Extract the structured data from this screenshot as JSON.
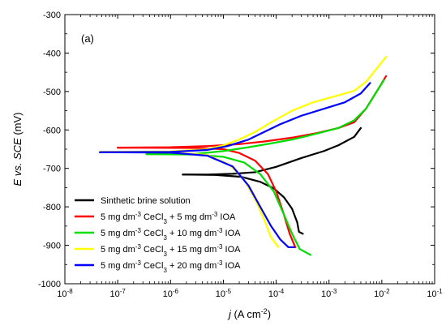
{
  "chart_data": {
    "type": "line",
    "panel_label": "(a)",
    "xlabel": {
      "italic": "j",
      "unit_pre": " (A cm",
      "unit_sup": "-2",
      "unit_post": ")"
    },
    "ylabel": {
      "italic": "E vs. SCE",
      "unit": " (mV)"
    },
    "x_scale": "log",
    "xlim": [
      1e-08,
      0.1
    ],
    "ylim": [
      -1000,
      -300
    ],
    "x_ticks": [
      {
        "value": 1e-08,
        "base": "10",
        "exp": "-8"
      },
      {
        "value": 1e-07,
        "base": "10",
        "exp": "-7"
      },
      {
        "value": 1e-06,
        "base": "10",
        "exp": "-6"
      },
      {
        "value": 1e-05,
        "base": "10",
        "exp": "-5"
      },
      {
        "value": 0.0001,
        "base": "10",
        "exp": "-4"
      },
      {
        "value": 0.001,
        "base": "10",
        "exp": "-3"
      },
      {
        "value": 0.01,
        "base": "10",
        "exp": "-2"
      },
      {
        "value": 0.1,
        "base": "10",
        "exp": "-1"
      }
    ],
    "y_ticks": [
      {
        "value": -300,
        "label": "-300"
      },
      {
        "value": -400,
        "label": "-400"
      },
      {
        "value": -500,
        "label": "-500"
      },
      {
        "value": -600,
        "label": "-600"
      },
      {
        "value": -700,
        "label": "-700"
      },
      {
        "value": -800,
        "label": "-800"
      },
      {
        "value": -900,
        "label": "-900"
      },
      {
        "value": -1000,
        "label": "-1000"
      }
    ],
    "legend_position": "lower-left",
    "series": [
      {
        "color": "#000000",
        "legend_parts": [
          "Sinthetic brine solution"
        ],
        "anodic": [
          [
            1.7e-06,
            -716
          ],
          [
            5e-06,
            -716
          ],
          [
            1.5e-05,
            -714
          ],
          [
            4e-05,
            -710
          ],
          [
            0.0001,
            -696
          ],
          [
            0.0003,
            -673
          ],
          [
            0.0008,
            -655
          ],
          [
            0.0015,
            -640
          ],
          [
            0.003,
            -618
          ],
          [
            0.004,
            -595
          ]
        ],
        "cathodic": [
          [
            1.7e-06,
            -716
          ],
          [
            7e-06,
            -717
          ],
          [
            2.2e-05,
            -722
          ],
          [
            5e-05,
            -735
          ],
          [
            9e-05,
            -752
          ],
          [
            0.00014,
            -775
          ],
          [
            0.0002,
            -805
          ],
          [
            0.00025,
            -840
          ],
          [
            0.00027,
            -865
          ],
          [
            0.00032,
            -870
          ]
        ]
      },
      {
        "color": "#ff0000",
        "legend_parts": [
          "5 mg dm",
          "-3",
          " CeCl",
          "3",
          " + 5 mg dm",
          "-3",
          " IOA"
        ],
        "anodic": [
          [
            1e-07,
            -646
          ],
          [
            1e-06,
            -645
          ],
          [
            5e-06,
            -642
          ],
          [
            2e-05,
            -637
          ],
          [
            6e-05,
            -630
          ],
          [
            0.0002,
            -620
          ],
          [
            0.0006,
            -608
          ],
          [
            0.0015,
            -595
          ],
          [
            0.003,
            -580
          ],
          [
            0.005,
            -545
          ],
          [
            0.008,
            -500
          ],
          [
            0.012,
            -460
          ]
        ],
        "cathodic": [
          [
            1e-07,
            -646
          ],
          [
            3e-06,
            -647
          ],
          [
            1e-05,
            -650
          ],
          [
            2e-05,
            -660
          ],
          [
            4e-05,
            -680
          ],
          [
            7e-05,
            -715
          ],
          [
            0.0001,
            -760
          ],
          [
            0.00014,
            -820
          ],
          [
            0.00018,
            -870
          ],
          [
            0.00023,
            -905
          ]
        ]
      },
      {
        "color": "#00dd00",
        "legend_parts": [
          "5 mg dm",
          "-3",
          " CeCl",
          "3",
          " + 10 mg dm",
          "-3",
          " IOA"
        ],
        "anodic": [
          [
            3.5e-07,
            -663
          ],
          [
            3e-06,
            -662
          ],
          [
            1e-05,
            -655
          ],
          [
            3e-05,
            -645
          ],
          [
            8e-05,
            -635
          ],
          [
            0.0002,
            -625
          ],
          [
            0.0005,
            -612
          ],
          [
            0.0015,
            -595
          ],
          [
            0.003,
            -575
          ],
          [
            0.005,
            -545
          ],
          [
            0.008,
            -500
          ],
          [
            0.011,
            -470
          ]
        ],
        "cathodic": [
          [
            3.5e-07,
            -663
          ],
          [
            3e-06,
            -664
          ],
          [
            1e-05,
            -670
          ],
          [
            2.5e-05,
            -685
          ],
          [
            5e-05,
            -715
          ],
          [
            9e-05,
            -760
          ],
          [
            0.00014,
            -820
          ],
          [
            0.0002,
            -870
          ],
          [
            0.00028,
            -910
          ],
          [
            0.00045,
            -925
          ]
        ]
      },
      {
        "color": "#ffff00",
        "legend_parts": [
          "5 mg dm",
          "-3",
          " CeCl",
          "3",
          " + 15 mg dm",
          "-3",
          " IOA"
        ],
        "anodic": [
          [
            4.6e-08,
            -657
          ],
          [
            1e-06,
            -656
          ],
          [
            5e-06,
            -650
          ],
          [
            1e-05,
            -640
          ],
          [
            2e-05,
            -625
          ],
          [
            4e-05,
            -605
          ],
          [
            8e-05,
            -580
          ],
          [
            0.0002,
            -550
          ],
          [
            0.0005,
            -528
          ],
          [
            0.0015,
            -510
          ],
          [
            0.003,
            -498
          ],
          [
            0.005,
            -475
          ],
          [
            0.008,
            -440
          ],
          [
            0.012,
            -410
          ]
        ],
        "cathodic": [
          [
            4.6e-08,
            -657
          ],
          [
            1e-06,
            -658
          ],
          [
            5e-06,
            -665
          ],
          [
            1.3e-05,
            -690
          ],
          [
            2.5e-05,
            -730
          ],
          [
            4e-05,
            -780
          ],
          [
            6e-05,
            -835
          ],
          [
            8e-05,
            -880
          ],
          [
            0.00011,
            -905
          ]
        ]
      },
      {
        "color": "#0000ff",
        "legend_parts": [
          "5 mg dm",
          "-3",
          " CeCl",
          "3",
          " + 20 mg dm",
          "-3",
          " IOA"
        ],
        "anodic": [
          [
            4.6e-08,
            -658
          ],
          [
            1e-06,
            -657
          ],
          [
            5e-06,
            -652
          ],
          [
            1.2e-05,
            -642
          ],
          [
            3e-05,
            -625
          ],
          [
            6e-05,
            -605
          ],
          [
            0.00012,
            -585
          ],
          [
            0.0003,
            -563
          ],
          [
            0.0008,
            -545
          ],
          [
            0.002,
            -528
          ],
          [
            0.004,
            -505
          ],
          [
            0.006,
            -478
          ]
        ],
        "cathodic": [
          [
            4.6e-08,
            -658
          ],
          [
            1e-06,
            -659
          ],
          [
            5e-06,
            -667
          ],
          [
            1.5e-05,
            -695
          ],
          [
            3e-05,
            -745
          ],
          [
            5e-05,
            -800
          ],
          [
            8e-05,
            -850
          ],
          [
            0.00012,
            -885
          ],
          [
            0.00017,
            -905
          ],
          [
            0.00022,
            -905
          ]
        ]
      }
    ]
  }
}
